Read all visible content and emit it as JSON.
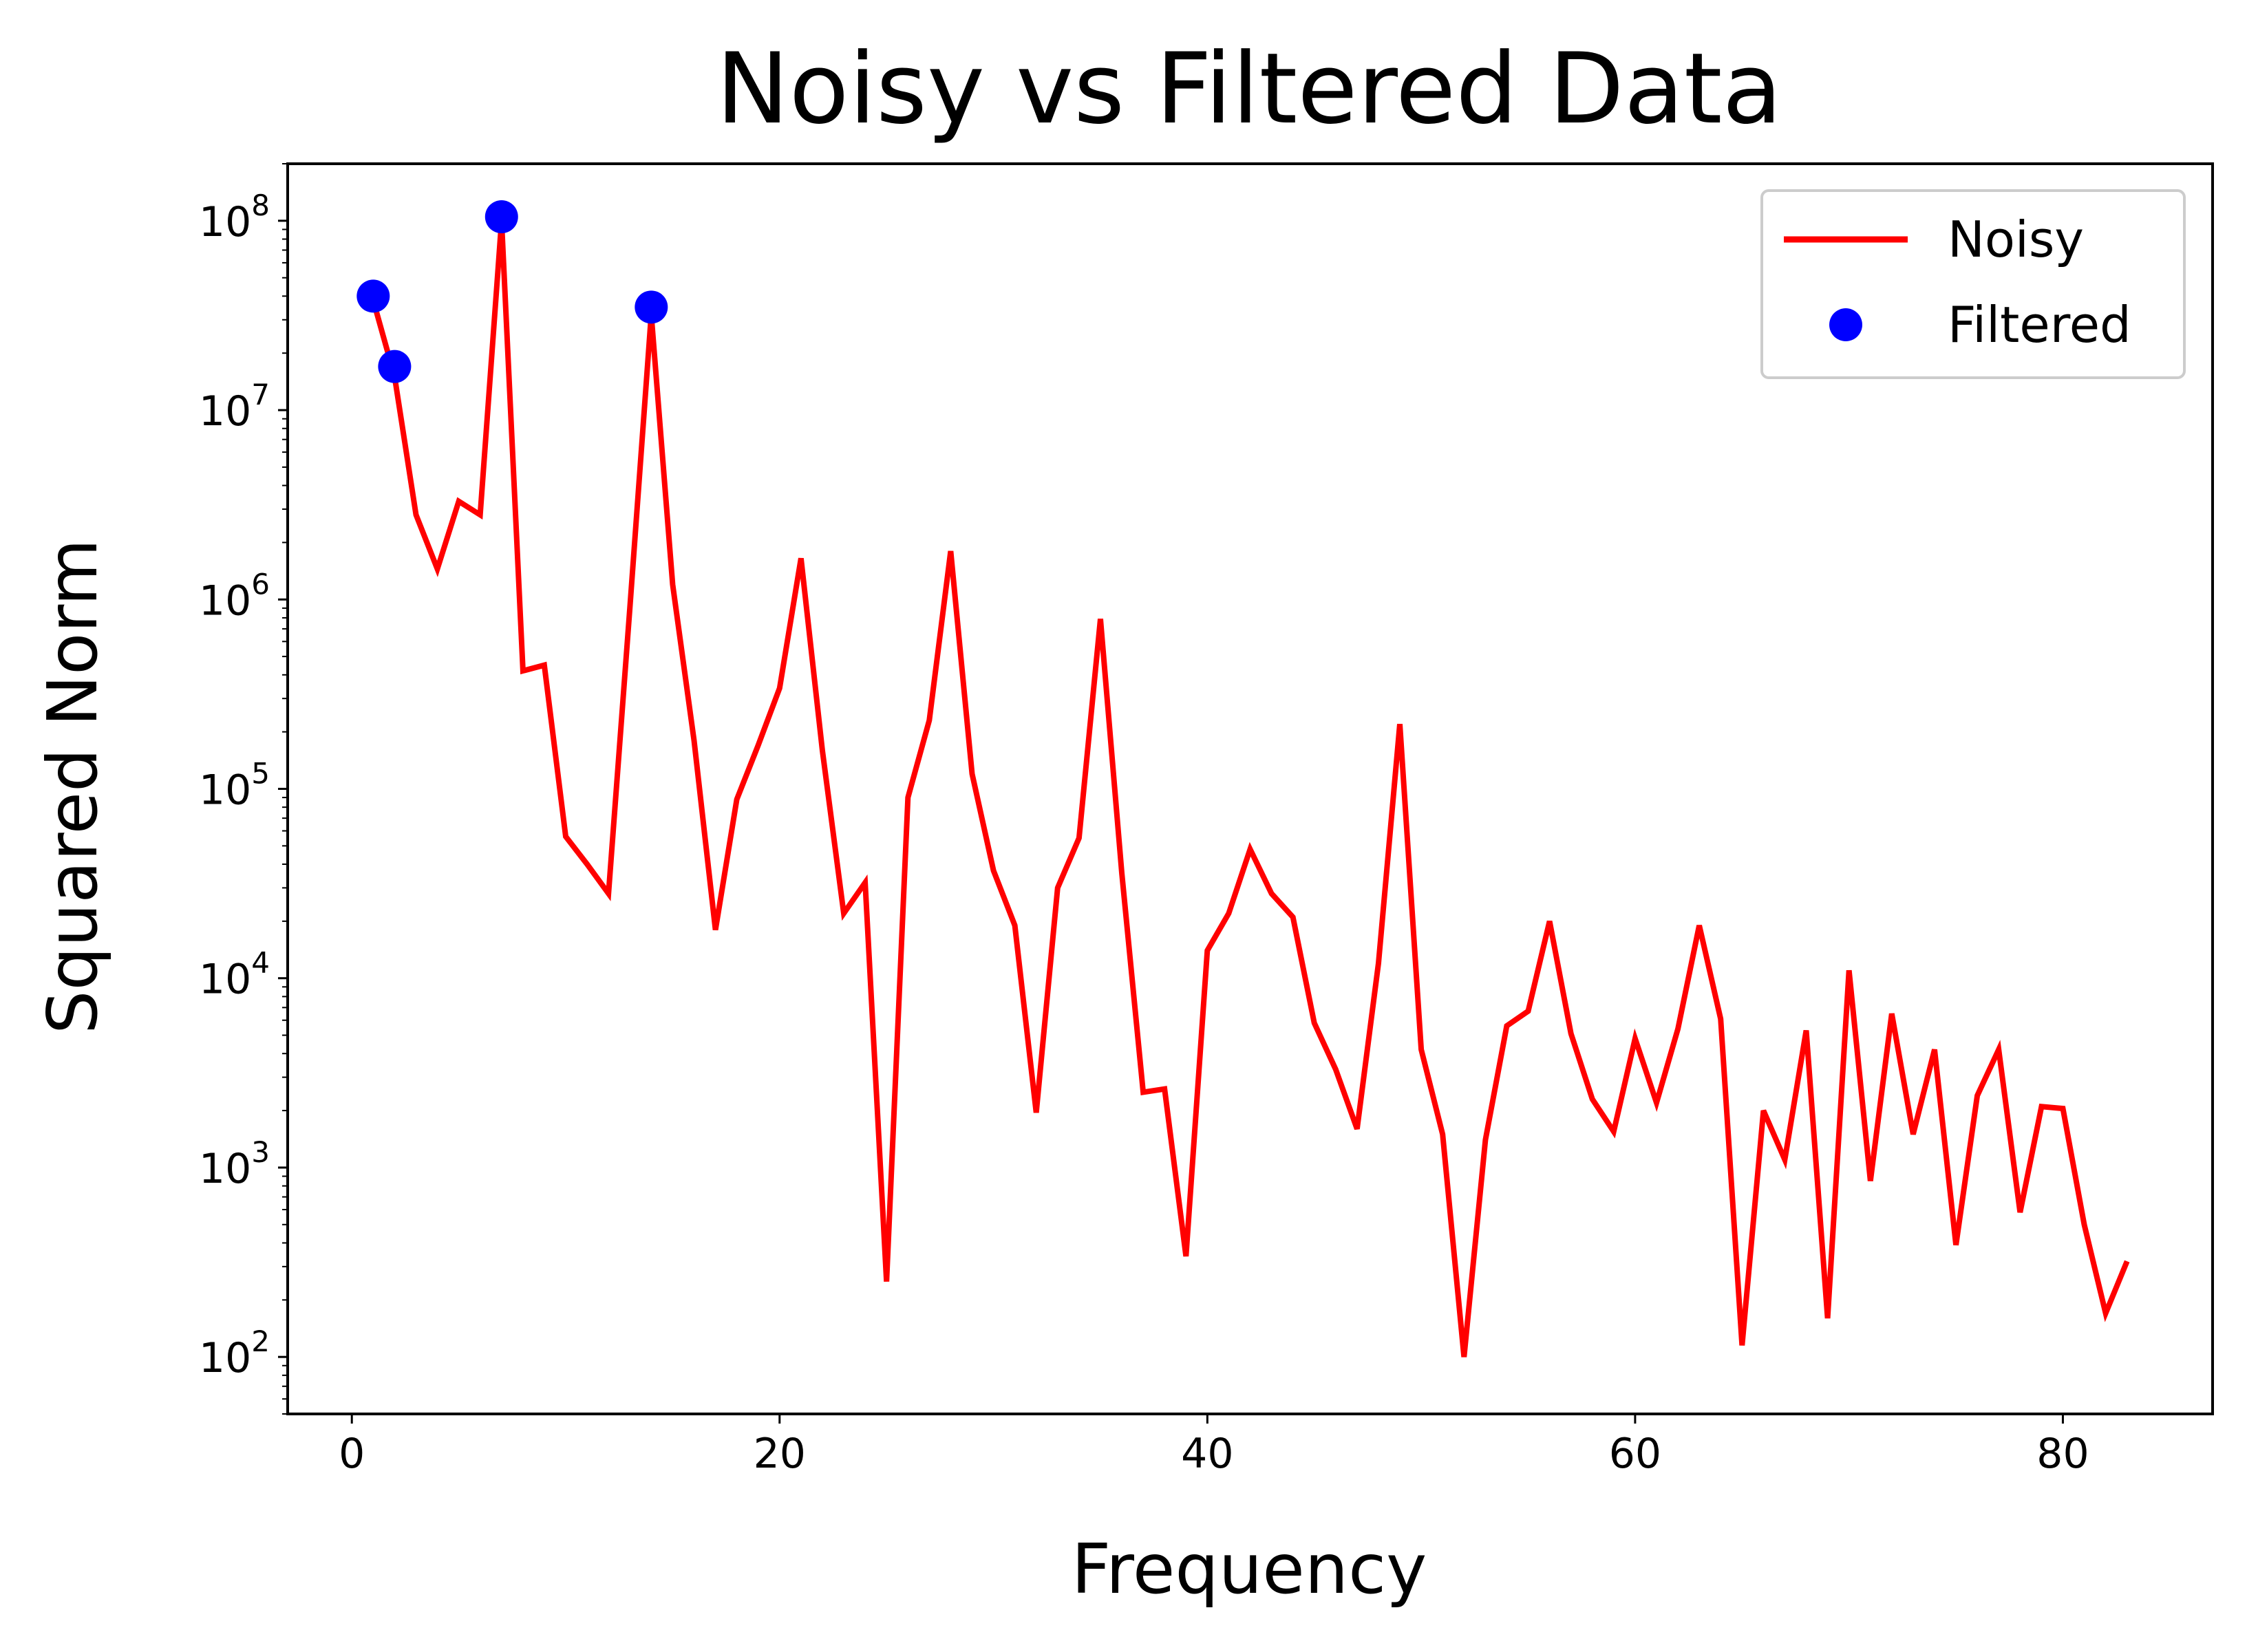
{
  "chart_data": {
    "type": "line",
    "title": "Noisy vs Filtered Data",
    "xlabel": "Frequency",
    "ylabel": "Squared Norm",
    "xscale": "linear",
    "yscale": "log",
    "xlim": [
      -3,
      87
    ],
    "ylim": [
      50,
      200000000
    ],
    "grid": false,
    "legend": {
      "position": "upper right"
    },
    "xticks": [
      0,
      20,
      40,
      60,
      80
    ],
    "xtick_labels": [
      "0",
      "20",
      "40",
      "60",
      "80"
    ],
    "yticks": [
      100,
      1000,
      10000,
      100000,
      1000000,
      10000000,
      100000000
    ],
    "ytick_labels": [
      {
        "base": "10",
        "exp": "2"
      },
      {
        "base": "10",
        "exp": "3"
      },
      {
        "base": "10",
        "exp": "4"
      },
      {
        "base": "10",
        "exp": "5"
      },
      {
        "base": "10",
        "exp": "6"
      },
      {
        "base": "10",
        "exp": "7"
      },
      {
        "base": "10",
        "exp": "8"
      }
    ],
    "series": [
      {
        "name": "Noisy",
        "style": "line",
        "color": "#ff0000",
        "x": [
          1,
          2,
          3,
          4,
          5,
          6,
          7,
          8,
          9,
          10,
          11,
          12,
          13,
          14,
          15,
          16,
          17,
          18,
          19,
          20,
          21,
          22,
          23,
          24,
          25,
          26,
          27,
          28,
          29,
          30,
          31,
          32,
          33,
          34,
          35,
          36,
          37,
          38,
          39,
          40,
          41,
          42,
          43,
          44,
          45,
          46,
          47,
          48,
          49,
          50,
          51,
          52,
          53,
          54,
          55,
          56,
          57,
          58,
          59,
          60,
          61,
          62,
          63,
          64,
          65,
          66,
          67,
          68,
          69,
          70,
          71,
          72,
          73,
          74,
          75,
          76,
          77,
          78,
          79,
          80,
          81,
          82,
          83
        ],
        "y": [
          38000000,
          15000000,
          2800000,
          1450000,
          3300000,
          2800000,
          100000000,
          420000,
          450000,
          56000,
          40000,
          28000,
          900000,
          32000000,
          1200000,
          180000,
          18000,
          88000,
          170000,
          340000,
          1650000,
          160000,
          22000,
          32000,
          250,
          90000,
          230000,
          1800000,
          120000,
          37000,
          19000,
          1950,
          30000,
          55000,
          790000,
          36000,
          2500,
          2600,
          340,
          14000,
          22000,
          48000,
          28000,
          21000,
          5800,
          3300,
          1600,
          12000,
          220000,
          4200,
          1500,
          100,
          1400,
          5600,
          6700,
          20000,
          5100,
          2300,
          1550,
          4800,
          2200,
          5400,
          19000,
          6100,
          115,
          2000,
          1100,
          5300,
          160,
          11000,
          850,
          6500,
          1500,
          4200,
          390,
          2400,
          4200,
          580,
          2100,
          2050,
          500,
          170,
          320
        ]
      },
      {
        "name": "Filtered",
        "style": "markers",
        "color": "#0000ff",
        "x": [
          1,
          2,
          7,
          14
        ],
        "y": [
          40000000,
          17000000,
          105000000,
          35000000
        ]
      }
    ]
  }
}
